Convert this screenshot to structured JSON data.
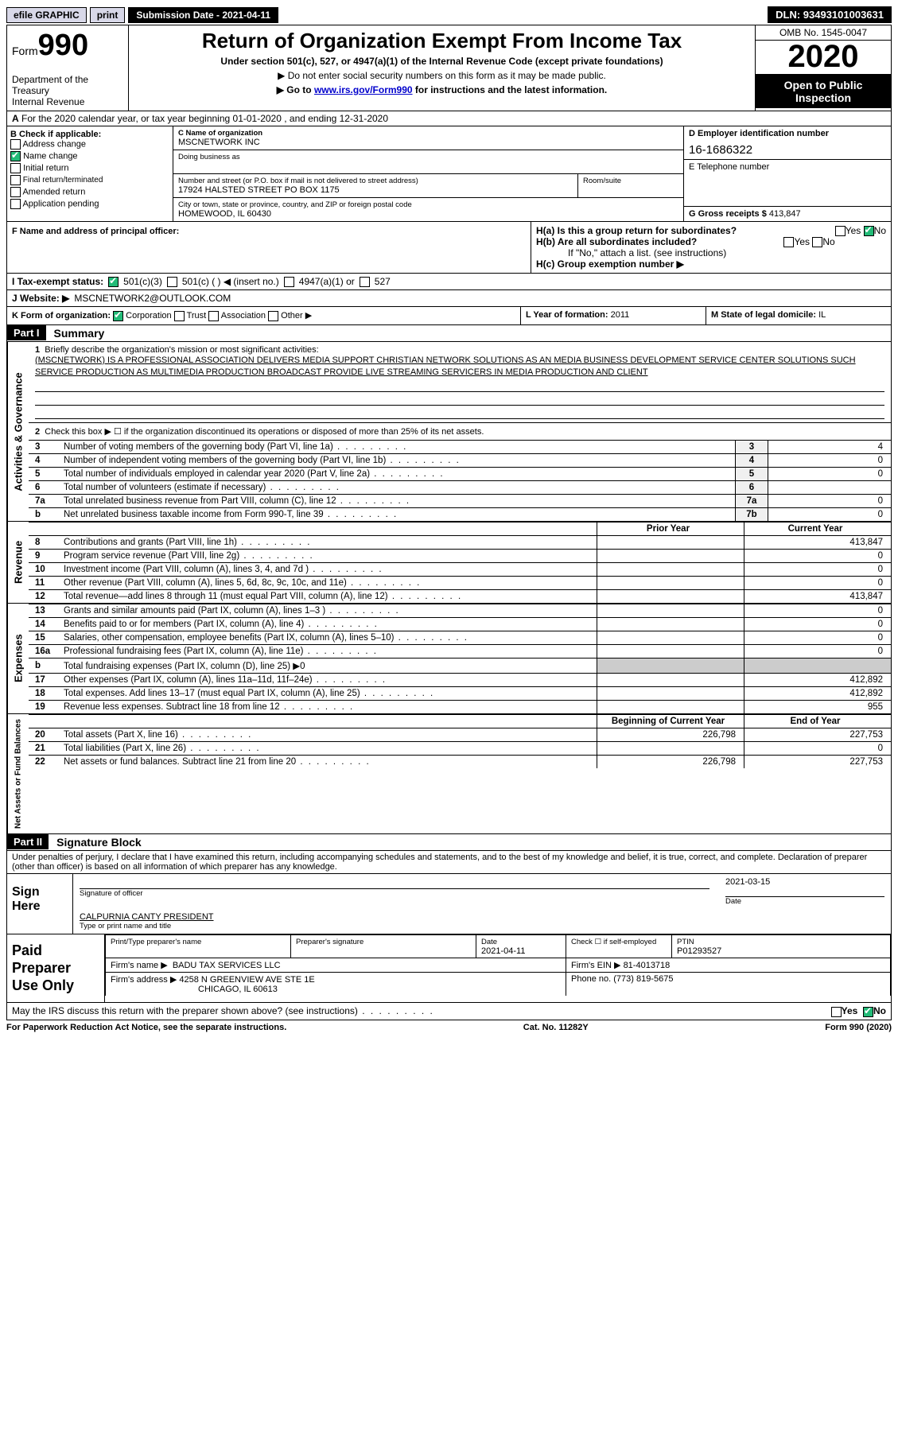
{
  "topbar": {
    "efile": "efile GRAPHIC",
    "print": "print",
    "subdate_label": "Submission Date - 2021-04-11",
    "dln": "DLN: 93493101003631"
  },
  "header": {
    "form_prefix": "Form",
    "form_no": "990",
    "dept": "Department of the Treasury\nInternal Revenue",
    "title": "Return of Organization Exempt From Income Tax",
    "sub": "Under section 501(c), 527, or 4947(a)(1) of the Internal Revenue Code (except private foundations)",
    "sub2": "▶ Do not enter social security numbers on this form as it may be made public.",
    "sub3_pre": "▶ Go to ",
    "sub3_link": "www.irs.gov/Form990",
    "sub3_post": " for instructions and the latest information.",
    "omb": "OMB No. 1545-0047",
    "year": "2020",
    "openpub": "Open to Public Inspection"
  },
  "A": "For the 2020 calendar year, or tax year beginning 01-01-2020   , and ending 12-31-2020",
  "B": {
    "label": "B Check if applicable:",
    "items": [
      "Address change",
      "Name change",
      "Initial return",
      "Final return/terminated",
      "Amended return",
      "Application pending"
    ],
    "checked_index": 1
  },
  "C": {
    "name_label": "C Name of organization",
    "name": "MSCNETWORK INC",
    "dba_label": "Doing business as",
    "addr_label": "Number and street (or P.O. box if mail is not delivered to street address)",
    "room_label": "Room/suite",
    "addr": "17924 HALSTED STREET PO BOX 1175",
    "city_label": "City or town, state or province, country, and ZIP or foreign postal code",
    "city": "HOMEWOOD, IL  60430"
  },
  "D": {
    "label": "D Employer identification number",
    "value": "16-1686322"
  },
  "E": {
    "label": "E Telephone number",
    "value": ""
  },
  "G": {
    "label": "G Gross receipts $",
    "value": "413,847"
  },
  "F": {
    "label": "F  Name and address of principal officer:"
  },
  "H": {
    "a": "H(a)  Is this a group return for subordinates?",
    "a_no": true,
    "b": "H(b)  Are all subordinates included?",
    "b_note": "If \"No,\" attach a list. (see instructions)",
    "c": "H(c)  Group exemption number ▶"
  },
  "I": {
    "label": "I   Tax-exempt status:",
    "opts": [
      "501(c)(3)",
      "501(c) (  ) ◀ (insert no.)",
      "4947(a)(1) or",
      "527"
    ],
    "checked": 0
  },
  "J": {
    "label": "J   Website: ▶",
    "value": "MSCNETWORK2@OUTLOOK.COM"
  },
  "K": {
    "label": "K Form of organization:",
    "opts": [
      "Corporation",
      "Trust",
      "Association",
      "Other ▶"
    ],
    "checked": 0
  },
  "L": {
    "label": "L Year of formation:",
    "value": "2011"
  },
  "M": {
    "label": "M State of legal domicile:",
    "value": "IL"
  },
  "part1": {
    "tag": "Part I",
    "title": "Summary",
    "vtab_ag": "Activities & Governance",
    "vtab_rev": "Revenue",
    "vtab_exp": "Expenses",
    "vtab_na": "Net Assets or Fund Balances",
    "l1_label": "Briefly describe the organization's mission or most significant activities:",
    "l1_text": "(MSCNETWORK) IS A PROFESSIONAL ASSOCIATION DELIVERS MEDIA SUPPORT CHRISTIAN NETWORK SOLUTIONS AS AN MEDIA BUSINESS DEVELOPMENT SERVICE CENTER SOLUTIONS SUCH SERVICE PRODUCTION AS MULTIMEDIA PRODUCTION BROADCAST PROVIDE LIVE STREAMING SERVICERS IN MEDIA PRODUCTION AND CLIENT",
    "l2": "Check this box ▶ ☐  if the organization discontinued its operations or disposed of more than 25% of its net assets.",
    "rows_single": [
      {
        "n": "3",
        "t": "Number of voting members of the governing body (Part VI, line 1a)",
        "box": "3",
        "v": "4"
      },
      {
        "n": "4",
        "t": "Number of independent voting members of the governing body (Part VI, line 1b)",
        "box": "4",
        "v": "0"
      },
      {
        "n": "5",
        "t": "Total number of individuals employed in calendar year 2020 (Part V, line 2a)",
        "box": "5",
        "v": "0"
      },
      {
        "n": "6",
        "t": "Total number of volunteers (estimate if necessary)",
        "box": "6",
        "v": ""
      },
      {
        "n": "7a",
        "t": "Total unrelated business revenue from Part VIII, column (C), line 12",
        "box": "7a",
        "v": "0"
      },
      {
        "n": "b",
        "t": "Net unrelated business taxable income from Form 990-T, line 39",
        "box": "7b",
        "v": "0"
      }
    ],
    "hdr_prior": "Prior Year",
    "hdr_curr": "Current Year",
    "rev": [
      {
        "n": "8",
        "t": "Contributions and grants (Part VIII, line 1h)",
        "p": "",
        "c": "413,847"
      },
      {
        "n": "9",
        "t": "Program service revenue (Part VIII, line 2g)",
        "p": "",
        "c": "0"
      },
      {
        "n": "10",
        "t": "Investment income (Part VIII, column (A), lines 3, 4, and 7d )",
        "p": "",
        "c": "0"
      },
      {
        "n": "11",
        "t": "Other revenue (Part VIII, column (A), lines 5, 6d, 8c, 9c, 10c, and 11e)",
        "p": "",
        "c": "0"
      },
      {
        "n": "12",
        "t": "Total revenue—add lines 8 through 11 (must equal Part VIII, column (A), line 12)",
        "p": "",
        "c": "413,847"
      }
    ],
    "exp": [
      {
        "n": "13",
        "t": "Grants and similar amounts paid (Part IX, column (A), lines 1–3 )",
        "p": "",
        "c": "0"
      },
      {
        "n": "14",
        "t": "Benefits paid to or for members (Part IX, column (A), line 4)",
        "p": "",
        "c": "0"
      },
      {
        "n": "15",
        "t": "Salaries, other compensation, employee benefits (Part IX, column (A), lines 5–10)",
        "p": "",
        "c": "0"
      },
      {
        "n": "16a",
        "t": "Professional fundraising fees (Part IX, column (A), line 11e)",
        "p": "",
        "c": "0"
      },
      {
        "n": "b",
        "t": "Total fundraising expenses (Part IX, column (D), line 25) ▶0",
        "p": "—",
        "c": "—"
      },
      {
        "n": "17",
        "t": "Other expenses (Part IX, column (A), lines 11a–11d, 11f–24e)",
        "p": "",
        "c": "412,892"
      },
      {
        "n": "18",
        "t": "Total expenses. Add lines 13–17 (must equal Part IX, column (A), line 25)",
        "p": "",
        "c": "412,892"
      },
      {
        "n": "19",
        "t": "Revenue less expenses. Subtract line 18 from line 12",
        "p": "",
        "c": "955"
      }
    ],
    "hdr_beg": "Beginning of Current Year",
    "hdr_end": "End of Year",
    "na": [
      {
        "n": "20",
        "t": "Total assets (Part X, line 16)",
        "p": "226,798",
        "c": "227,753"
      },
      {
        "n": "21",
        "t": "Total liabilities (Part X, line 26)",
        "p": "",
        "c": "0"
      },
      {
        "n": "22",
        "t": "Net assets or fund balances. Subtract line 21 from line 20",
        "p": "226,798",
        "c": "227,753"
      }
    ]
  },
  "part2": {
    "tag": "Part II",
    "title": "Signature Block",
    "decl": "Under penalties of perjury, I declare that I have examined this return, including accompanying schedules and statements, and to the best of my knowledge and belief, it is true, correct, and complete. Declaration of preparer (other than officer) is based on all information of which preparer has any knowledge.",
    "sign_here": "Sign Here",
    "sig_off": "Signature of officer",
    "sig_date": "Date",
    "sig_date_val": "2021-03-15",
    "sig_name": "CALPURNIA CANTY PRESIDENT",
    "sig_name_cap": "Type or print name and title",
    "paid_label": "Paid Preparer Use Only",
    "p_name_h": "Print/Type preparer's name",
    "p_sig_h": "Preparer's signature",
    "p_date_h": "Date",
    "p_date": "2021-04-11",
    "p_check": "Check ☐ if self-employed",
    "p_ptin_h": "PTIN",
    "p_ptin": "P01293527",
    "firm_name_l": "Firm's name    ▶",
    "firm_name": "BADU TAX SERVICES LLC",
    "firm_ein_l": "Firm's EIN ▶",
    "firm_ein": "81-4013718",
    "firm_addr_l": "Firm's address ▶",
    "firm_addr": "4258 N GREENVIEW AVE STE 1E",
    "firm_city": "CHICAGO, IL  60613",
    "firm_phone_l": "Phone no.",
    "firm_phone": "(773) 819-5675",
    "may_irs": "May the IRS discuss this return with the preparer shown above? (see instructions)",
    "may_no": true
  },
  "footer": {
    "left": "For Paperwork Reduction Act Notice, see the separate instructions.",
    "mid": "Cat. No. 11282Y",
    "right": "Form 990 (2020)"
  }
}
